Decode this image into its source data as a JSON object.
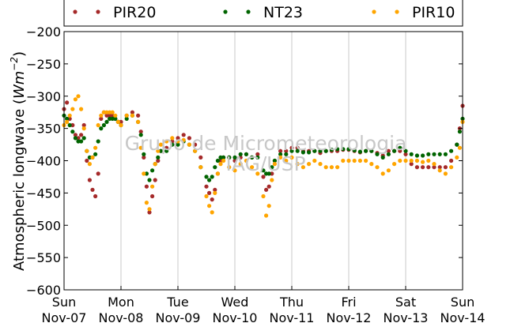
{
  "chart_data": {
    "type": "scatter",
    "title": "",
    "xlabel": "",
    "ylabel": "Atmospheric longwave (Wm^-2)",
    "ylabel_parts": {
      "prefix": "Atmospheric longwave (",
      "var": "Wm",
      "exp": "−2",
      "suffix": ")"
    },
    "ylim": [
      -600,
      -200
    ],
    "yticks": [
      -600,
      -550,
      -500,
      -450,
      -400,
      -350,
      -300,
      -250,
      -200
    ],
    "ytick_labels": [
      "−600",
      "−550",
      "−500",
      "−450",
      "−400",
      "−350",
      "−300",
      "−250",
      "−200"
    ],
    "xlim": [
      0,
      7
    ],
    "xticks": [
      0,
      1,
      2,
      3,
      4,
      5,
      6,
      7
    ],
    "xtick_labels": [
      [
        "Sun",
        "Nov-07"
      ],
      [
        "Mon",
        "Nov-08"
      ],
      [
        "Tue",
        "Nov-09"
      ],
      [
        "Wed",
        "Nov-10"
      ],
      [
        "Thu",
        "Nov-11"
      ],
      [
        "Fri",
        "Nov-12"
      ],
      [
        "Sat",
        "Nov-13"
      ],
      [
        "Sun",
        "Nov-14"
      ]
    ],
    "grid": "x",
    "legend_position": "top",
    "watermark": [
      "Grupo de Micrometeorologia",
      "IAG/USP"
    ],
    "series": [
      {
        "name": "PIR20",
        "color": "#a52a2a",
        "draw_order": 1,
        "x": [
          0.0,
          0.05,
          0.1,
          0.15,
          0.2,
          0.25,
          0.3,
          0.35,
          0.4,
          0.45,
          0.5,
          0.55,
          0.6,
          0.65,
          0.7,
          0.75,
          0.8,
          0.85,
          0.9,
          0.95,
          1.0,
          1.1,
          1.2,
          1.3,
          1.35,
          1.4,
          1.45,
          1.5,
          1.55,
          1.6,
          1.65,
          1.7,
          1.8,
          1.9,
          2.0,
          2.1,
          2.2,
          2.3,
          2.4,
          2.5,
          2.55,
          2.6,
          2.65,
          2.7,
          2.75,
          2.8,
          2.9,
          3.0,
          3.1,
          3.2,
          3.3,
          3.4,
          3.5,
          3.55,
          3.6,
          3.65,
          3.7,
          3.8,
          3.9,
          4.0,
          4.1,
          4.2,
          4.3,
          4.4,
          4.5,
          4.6,
          4.7,
          4.8,
          4.9,
          5.0,
          5.1,
          5.2,
          5.3,
          5.4,
          5.5,
          5.6,
          5.7,
          5.8,
          5.9,
          6.0,
          6.1,
          6.2,
          6.3,
          6.4,
          6.5,
          6.6,
          6.7,
          6.8,
          6.9,
          6.95,
          7.0
        ],
        "y": [
          -320,
          -310,
          -335,
          -345,
          -360,
          -365,
          -360,
          -345,
          -400,
          -430,
          -445,
          -455,
          -420,
          -335,
          -325,
          -330,
          -330,
          -330,
          -335,
          -340,
          -340,
          -330,
          -325,
          -330,
          -355,
          -395,
          -440,
          -480,
          -455,
          -430,
          -400,
          -385,
          -380,
          -370,
          -365,
          -360,
          -365,
          -375,
          -395,
          -440,
          -450,
          -460,
          -445,
          -420,
          -400,
          -395,
          -395,
          -400,
          -395,
          -390,
          -395,
          -390,
          -425,
          -445,
          -440,
          -420,
          -400,
          -385,
          -385,
          -380,
          -380,
          -385,
          -385,
          -385,
          -388,
          -385,
          -385,
          -385,
          -383,
          -383,
          -385,
          -387,
          -385,
          -385,
          -388,
          -392,
          -385,
          -385,
          -385,
          -390,
          -405,
          -410,
          -410,
          -410,
          -410,
          -410,
          -410,
          -400,
          -375,
          -350,
          -315
        ]
      },
      {
        "name": "NT23",
        "color": "#006400",
        "draw_order": 2,
        "x": [
          0.0,
          0.05,
          0.1,
          0.15,
          0.2,
          0.25,
          0.3,
          0.35,
          0.4,
          0.45,
          0.5,
          0.55,
          0.6,
          0.65,
          0.7,
          0.75,
          0.8,
          0.85,
          0.9,
          0.95,
          1.0,
          1.1,
          1.2,
          1.3,
          1.35,
          1.4,
          1.45,
          1.5,
          1.55,
          1.6,
          1.65,
          1.7,
          1.8,
          1.9,
          2.0,
          2.1,
          2.2,
          2.3,
          2.4,
          2.5,
          2.55,
          2.6,
          2.65,
          2.7,
          2.75,
          2.8,
          2.9,
          3.0,
          3.1,
          3.2,
          3.3,
          3.4,
          3.5,
          3.55,
          3.6,
          3.65,
          3.7,
          3.8,
          3.9,
          4.0,
          4.1,
          4.2,
          4.3,
          4.4,
          4.5,
          4.6,
          4.7,
          4.8,
          4.9,
          5.0,
          5.1,
          5.2,
          5.3,
          5.4,
          5.5,
          5.6,
          5.7,
          5.8,
          5.9,
          6.0,
          6.1,
          6.2,
          6.3,
          6.4,
          6.5,
          6.6,
          6.7,
          6.8,
          6.9,
          6.95,
          7.0
        ],
        "y": [
          -330,
          -335,
          -345,
          -355,
          -365,
          -370,
          -370,
          -365,
          -385,
          -395,
          -395,
          -390,
          -370,
          -350,
          -345,
          -340,
          -335,
          -335,
          -335,
          -340,
          -345,
          -335,
          -330,
          -340,
          -360,
          -390,
          -420,
          -430,
          -415,
          -405,
          -395,
          -385,
          -385,
          -375,
          -375,
          -370,
          -375,
          -385,
          -410,
          -425,
          -430,
          -425,
          -410,
          -400,
          -395,
          -395,
          -395,
          -395,
          -390,
          -390,
          -395,
          -395,
          -415,
          -420,
          -420,
          -410,
          -400,
          -390,
          -390,
          -385,
          -385,
          -387,
          -387,
          -385,
          -385,
          -385,
          -383,
          -382,
          -382,
          -382,
          -384,
          -386,
          -385,
          -385,
          -390,
          -395,
          -390,
          -385,
          -380,
          -385,
          -390,
          -392,
          -392,
          -390,
          -390,
          -390,
          -390,
          -385,
          -375,
          -355,
          -335
        ]
      },
      {
        "name": "PIR10",
        "color": "#ffa500",
        "draw_order": 3,
        "x": [
          0.0,
          0.05,
          0.1,
          0.15,
          0.2,
          0.25,
          0.3,
          0.35,
          0.4,
          0.45,
          0.5,
          0.55,
          0.6,
          0.65,
          0.7,
          0.75,
          0.8,
          0.85,
          0.9,
          0.95,
          1.0,
          1.1,
          1.2,
          1.3,
          1.35,
          1.4,
          1.45,
          1.5,
          1.55,
          1.6,
          1.65,
          1.7,
          1.8,
          1.9,
          2.0,
          2.1,
          2.2,
          2.3,
          2.4,
          2.5,
          2.55,
          2.6,
          2.65,
          2.7,
          2.75,
          2.8,
          2.9,
          3.0,
          3.1,
          3.2,
          3.3,
          3.4,
          3.5,
          3.55,
          3.6,
          3.65,
          3.7,
          3.8,
          3.9,
          4.0,
          4.1,
          4.2,
          4.3,
          4.4,
          4.5,
          4.6,
          4.7,
          4.8,
          4.9,
          5.0,
          5.1,
          5.2,
          5.3,
          5.4,
          5.5,
          5.6,
          5.7,
          5.8,
          5.9,
          6.0,
          6.1,
          6.2,
          6.3,
          6.4,
          6.5,
          6.6,
          6.7,
          6.8,
          6.9,
          6.95,
          7.0
        ],
        "y": [
          -345,
          -340,
          -330,
          -320,
          -305,
          -300,
          -320,
          -350,
          -385,
          -405,
          -395,
          -380,
          -345,
          -330,
          -325,
          -325,
          -325,
          -325,
          -330,
          -340,
          -345,
          -330,
          -330,
          -340,
          -380,
          -420,
          -465,
          -475,
          -440,
          -405,
          -385,
          -375,
          -370,
          -365,
          -370,
          -368,
          -375,
          -385,
          -410,
          -455,
          -470,
          -480,
          -450,
          -420,
          -405,
          -400,
          -410,
          -415,
          -405,
          -400,
          -410,
          -420,
          -455,
          -485,
          -470,
          -430,
          -405,
          -395,
          -400,
          -395,
          -405,
          -410,
          -405,
          -400,
          -405,
          -410,
          -410,
          -410,
          -400,
          -400,
          -400,
          -400,
          -400,
          -405,
          -410,
          -420,
          -415,
          -405,
          -400,
          -400,
          -400,
          -400,
          -402,
          -400,
          -405,
          -415,
          -420,
          -410,
          -395,
          -380,
          -340
        ]
      }
    ]
  }
}
